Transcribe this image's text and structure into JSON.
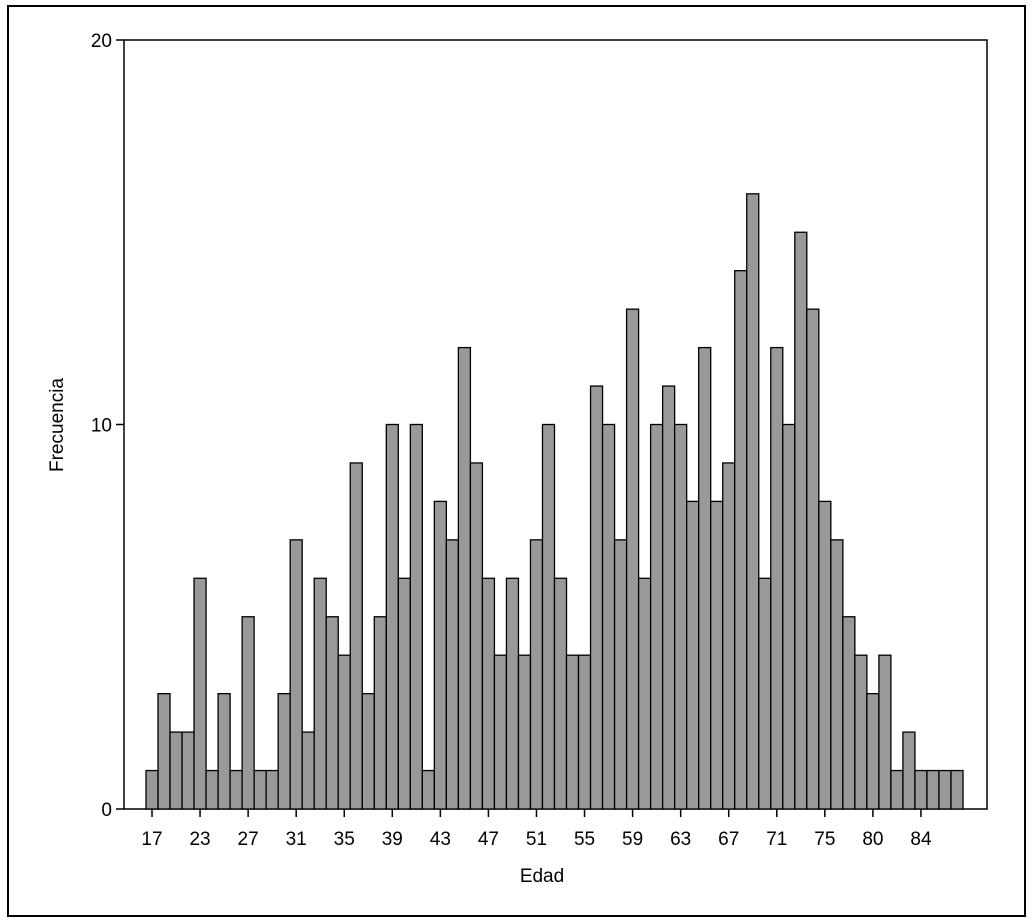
{
  "chart_data": {
    "type": "bar",
    "xlabel": "Edad",
    "ylabel": "Frecuencia",
    "color": "#999999",
    "categories": [
      "17",
      null,
      null,
      null,
      "23",
      null,
      null,
      null,
      "27",
      null,
      null,
      null,
      "31",
      null,
      null,
      null,
      "35",
      null,
      null,
      null,
      "39",
      null,
      null,
      null,
      "43",
      null,
      null,
      null,
      "47",
      null,
      null,
      null,
      "51",
      null,
      null,
      null,
      "55",
      null,
      null,
      null,
      "59",
      null,
      null,
      null,
      "63",
      null,
      null,
      null,
      "67",
      null,
      null,
      null,
      "71",
      null,
      null,
      null,
      "75",
      null,
      null,
      null,
      "80",
      null,
      null,
      null,
      "84",
      null,
      null,
      null
    ],
    "values": [
      1,
      3,
      2,
      2,
      6,
      1,
      3,
      1,
      5,
      1,
      1,
      3,
      7,
      2,
      6,
      5,
      4,
      9,
      3,
      5,
      10,
      6,
      10,
      1,
      8,
      7,
      12,
      9,
      6,
      4,
      6,
      4,
      7,
      10,
      6,
      4,
      4,
      11,
      10,
      7,
      13,
      6,
      10,
      11,
      10,
      8,
      12,
      8,
      9,
      14,
      16,
      6,
      12,
      10,
      15,
      13,
      8,
      7,
      5,
      4,
      3,
      4,
      1,
      2,
      1,
      1,
      1,
      1
    ],
    "ylim": [
      0,
      20
    ],
    "yticks": [
      0,
      10,
      20
    ],
    "grid": false
  }
}
